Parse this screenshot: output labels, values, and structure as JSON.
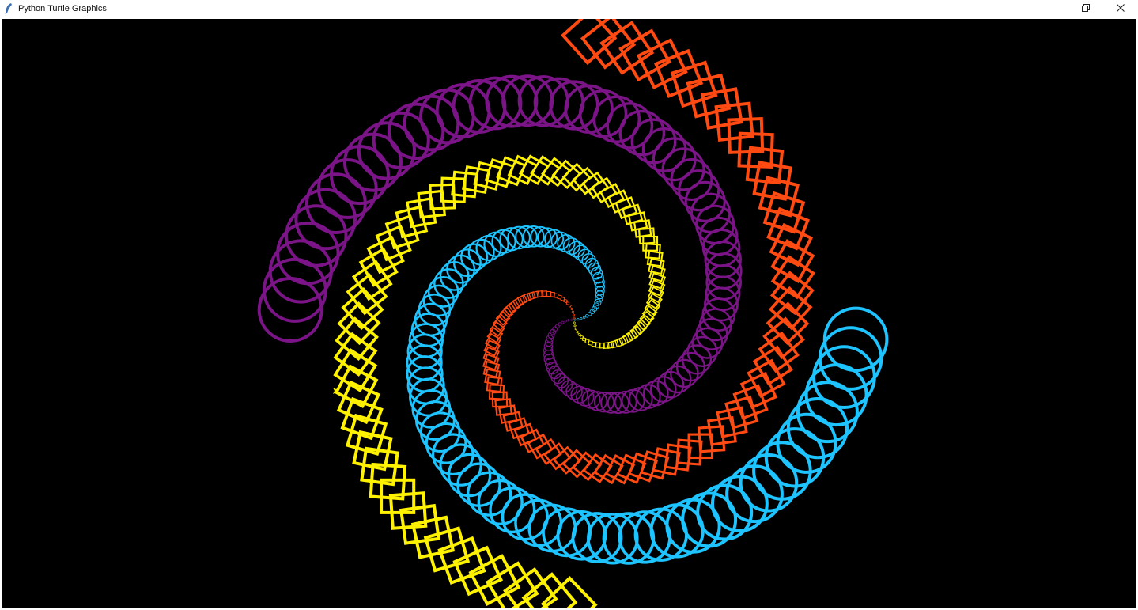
{
  "window": {
    "title": "Python Turtle Graphics",
    "app_icon": "feather-icon",
    "controls": [
      {
        "name": "restore-button",
        "icon": "restore-icon"
      },
      {
        "name": "close-button",
        "icon": "close-icon"
      }
    ]
  },
  "canvas": {
    "background": "#000000",
    "palette": {
      "cyan": "#1EC4FF",
      "purple": "#7A1487",
      "orange": "#FF4A12",
      "yellow": "#FFF200"
    },
    "cursor_icon": "turtle-arrow-icon"
  }
}
